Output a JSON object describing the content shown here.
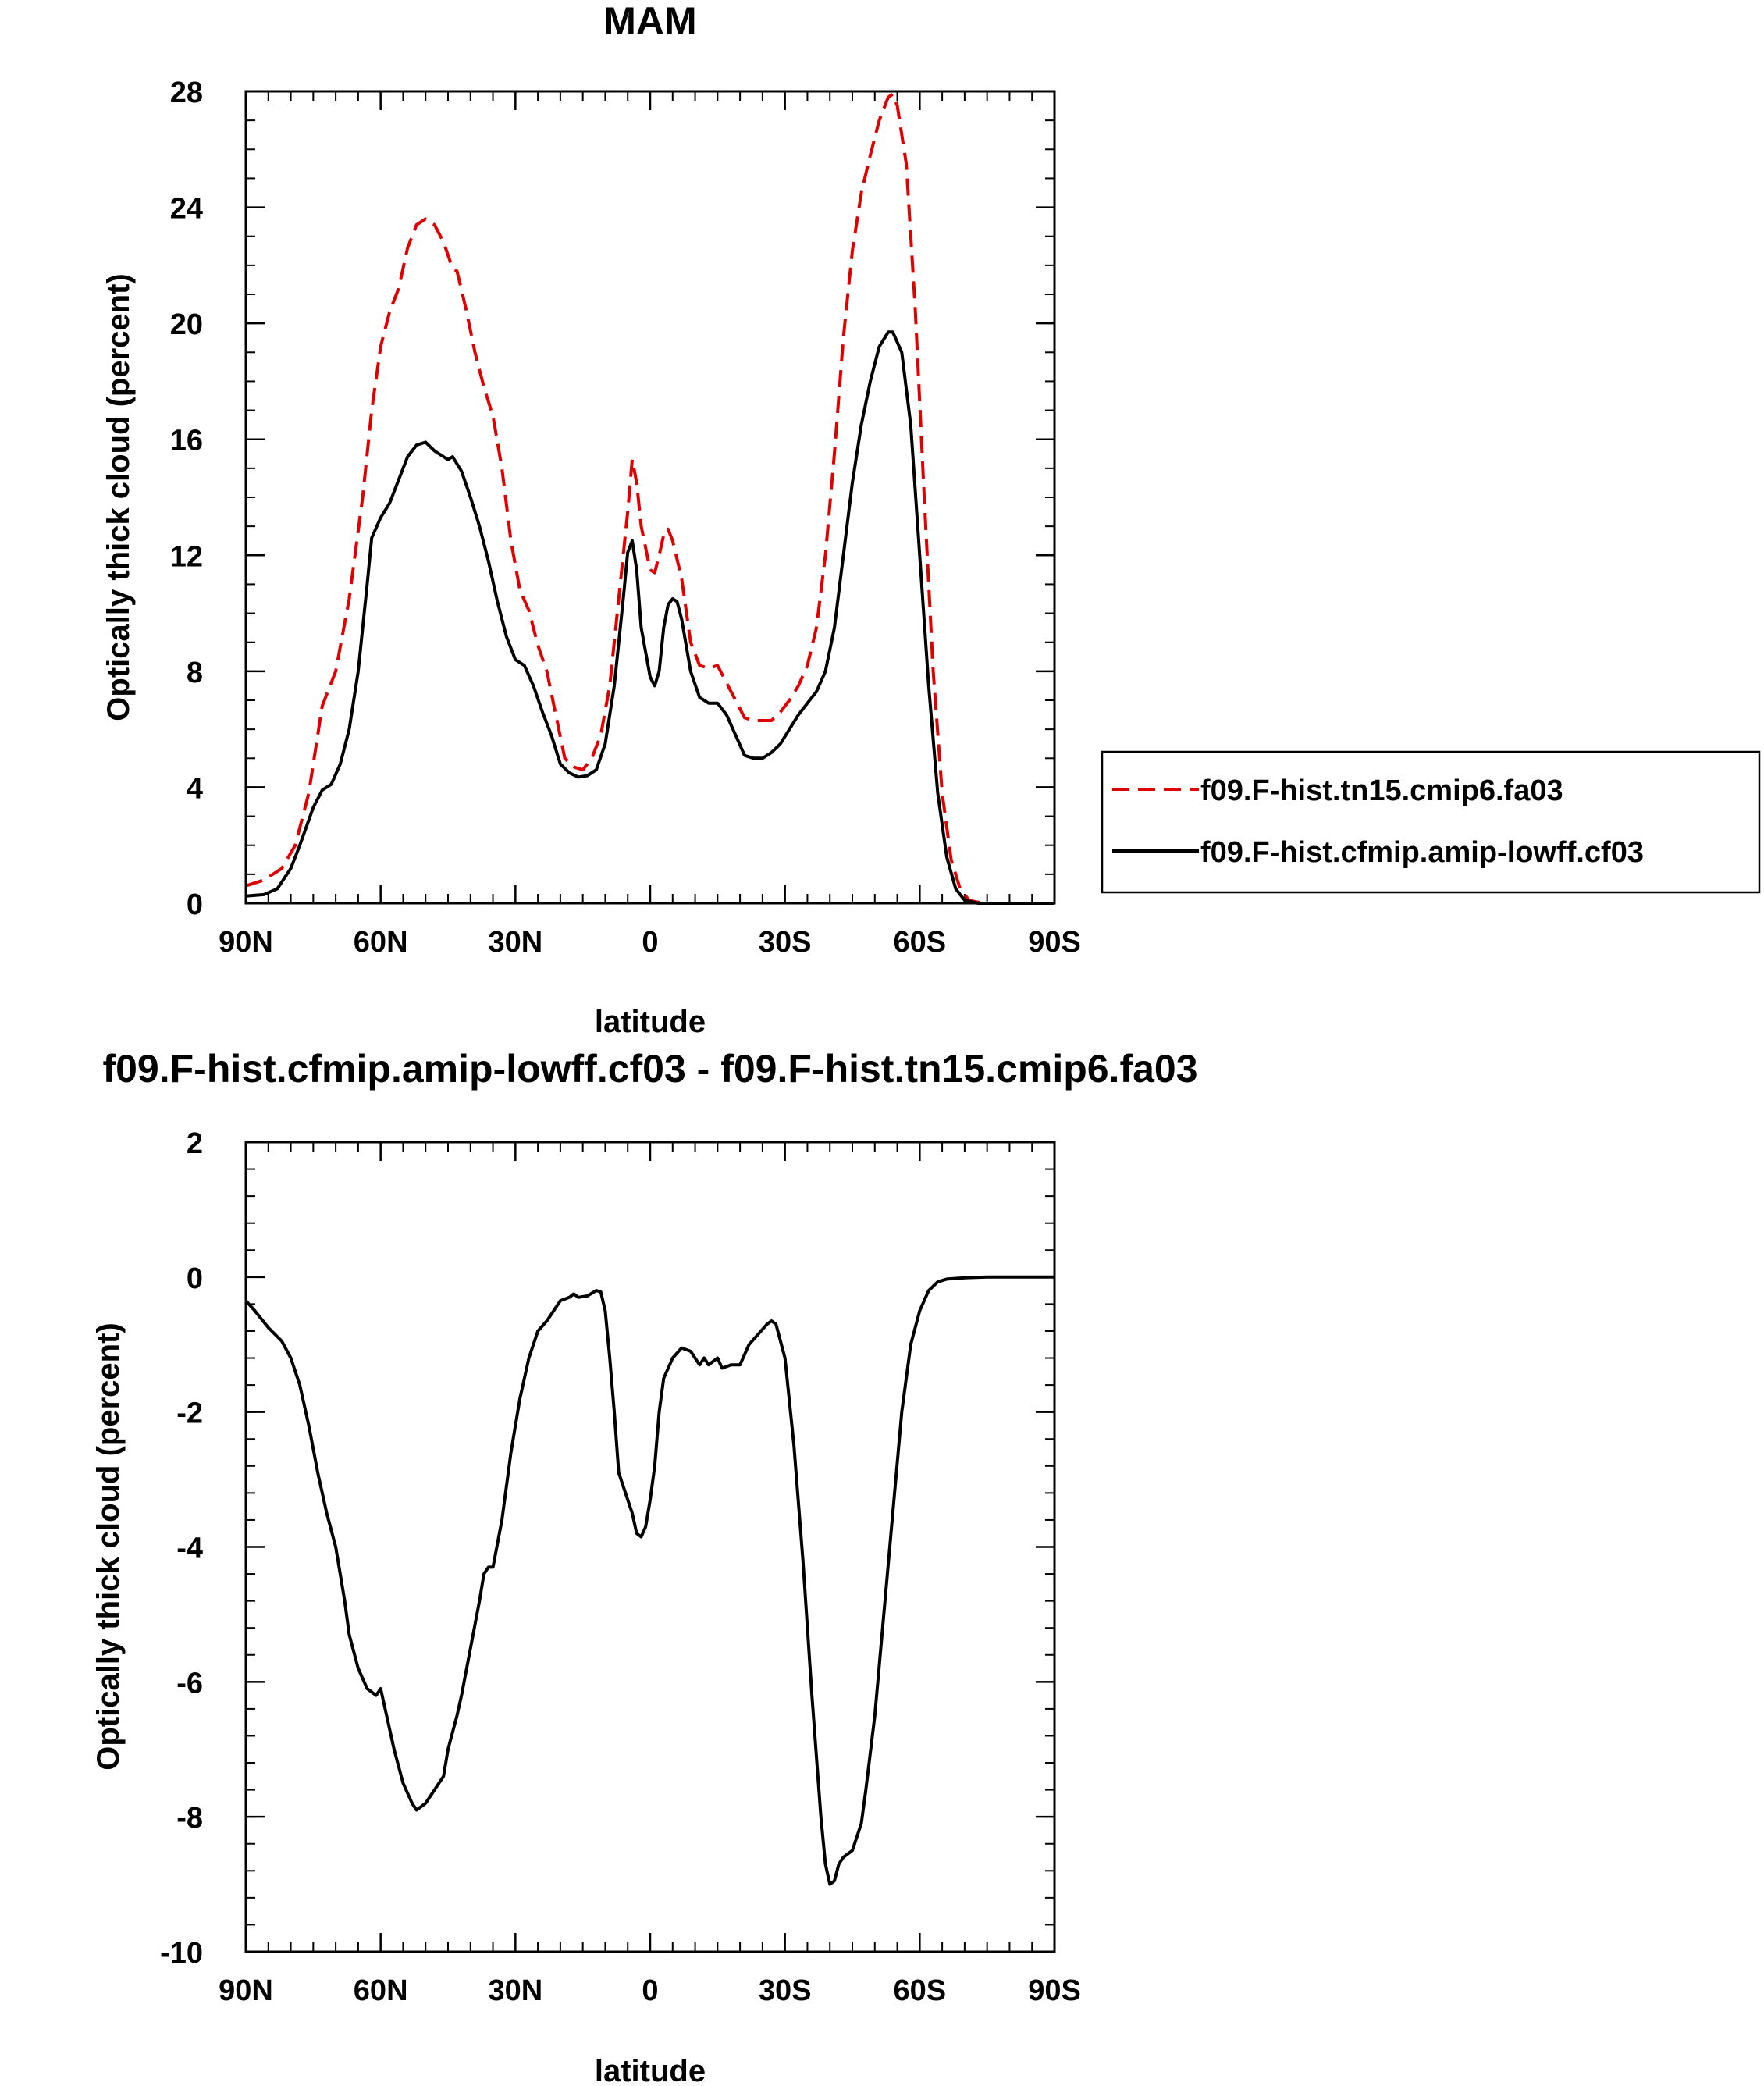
{
  "chart_data": [
    {
      "type": "line",
      "title": "MAM",
      "xlabel": "latitude",
      "ylabel": "Optically thick cloud (percent)",
      "xlim": [
        90,
        -90
      ],
      "ylim": [
        0,
        28
      ],
      "xticks": [
        90,
        60,
        30,
        0,
        -30,
        -60,
        -90
      ],
      "xtick_labels": [
        "90N",
        "60N",
        "30N",
        "0",
        "30S",
        "60S",
        "90S"
      ],
      "yticks": [
        0,
        4,
        8,
        12,
        16,
        20,
        24,
        28
      ],
      "ytick_labels": [
        "0",
        "4",
        "8",
        "12",
        "16",
        "20",
        "24",
        "28"
      ],
      "legend_position": "right",
      "series": [
        {
          "name": "f09.F-hist.tn15.cmip6.fa03",
          "color": "#e00000",
          "style": "dashed",
          "points": [
            [
              90,
              0.6
            ],
            [
              86,
              0.8
            ],
            [
              82,
              1.2
            ],
            [
              79,
              2.0
            ],
            [
              76,
              3.8
            ],
            [
              73,
              6.8
            ],
            [
              70,
              8.0
            ],
            [
              67,
              10.5
            ],
            [
              64,
              14.0
            ],
            [
              62,
              17.0
            ],
            [
              60,
              19.2
            ],
            [
              58,
              20.4
            ],
            [
              56,
              21.2
            ],
            [
              54,
              22.6
            ],
            [
              52,
              23.4
            ],
            [
              50,
              23.6
            ],
            [
              48,
              23.4
            ],
            [
              46,
              22.8
            ],
            [
              44,
              21.9
            ],
            [
              43,
              21.8
            ],
            [
              41,
              20.5
            ],
            [
              39,
              19.0
            ],
            [
              37,
              17.8
            ],
            [
              35,
              16.8
            ],
            [
              33,
              15.0
            ],
            [
              31,
              12.5
            ],
            [
              29,
              10.8
            ],
            [
              27,
              10.1
            ],
            [
              25,
              8.9
            ],
            [
              23,
              8.0
            ],
            [
              21,
              6.5
            ],
            [
              19,
              5.0
            ],
            [
              17,
              4.7
            ],
            [
              15,
              4.6
            ],
            [
              13,
              5.0
            ],
            [
              11,
              5.8
            ],
            [
              9,
              7.5
            ],
            [
              7,
              10.5
            ],
            [
              5,
              13.5
            ],
            [
              4,
              15.3
            ],
            [
              3,
              14.5
            ],
            [
              2,
              13.0
            ],
            [
              0,
              11.5
            ],
            [
              -1,
              11.4
            ],
            [
              -2,
              12.0
            ],
            [
              -3,
              12.7
            ],
            [
              -4,
              12.9
            ],
            [
              -5,
              12.5
            ],
            [
              -7,
              11.2
            ],
            [
              -9,
              9.0
            ],
            [
              -11,
              8.2
            ],
            [
              -13,
              8.1
            ],
            [
              -15,
              8.2
            ],
            [
              -17,
              7.6
            ],
            [
              -19,
              7.0
            ],
            [
              -21,
              6.4
            ],
            [
              -23,
              6.3
            ],
            [
              -25,
              6.3
            ],
            [
              -27,
              6.3
            ],
            [
              -29,
              6.6
            ],
            [
              -31,
              7.0
            ],
            [
              -33,
              7.5
            ],
            [
              -35,
              8.2
            ],
            [
              -37,
              9.5
            ],
            [
              -39,
              12.0
            ],
            [
              -41,
              15.5
            ],
            [
              -43,
              19.5
            ],
            [
              -45,
              22.5
            ],
            [
              -47,
              24.5
            ],
            [
              -49,
              25.8
            ],
            [
              -51,
              27.0
            ],
            [
              -53,
              27.8
            ],
            [
              -54,
              27.9
            ],
            [
              -55,
              27.5
            ],
            [
              -57,
              25.5
            ],
            [
              -59,
              20.5
            ],
            [
              -61,
              14.0
            ],
            [
              -63,
              8.0
            ],
            [
              -65,
              3.8
            ],
            [
              -67,
              1.5
            ],
            [
              -69,
              0.5
            ],
            [
              -71,
              0.1
            ],
            [
              -74,
              0.0
            ],
            [
              -90,
              0.0
            ]
          ]
        },
        {
          "name": "f09.F-hist.cfmip.amip-lowff.cf03",
          "color": "#000000",
          "style": "solid",
          "points": [
            [
              90,
              0.25
            ],
            [
              86,
              0.3
            ],
            [
              83,
              0.5
            ],
            [
              80,
              1.2
            ],
            [
              78,
              2.0
            ],
            [
              75,
              3.3
            ],
            [
              73,
              3.9
            ],
            [
              71,
              4.1
            ],
            [
              69,
              4.8
            ],
            [
              67,
              6.0
            ],
            [
              65,
              8.0
            ],
            [
              63,
              11.0
            ],
            [
              62,
              12.6
            ],
            [
              60,
              13.3
            ],
            [
              58,
              13.8
            ],
            [
              56,
              14.6
            ],
            [
              54,
              15.4
            ],
            [
              52,
              15.8
            ],
            [
              50,
              15.9
            ],
            [
              48,
              15.6
            ],
            [
              46,
              15.4
            ],
            [
              45,
              15.3
            ],
            [
              44,
              15.4
            ],
            [
              42,
              14.9
            ],
            [
              40,
              14.0
            ],
            [
              38,
              13.0
            ],
            [
              36,
              11.8
            ],
            [
              34,
              10.4
            ],
            [
              32,
              9.2
            ],
            [
              30,
              8.4
            ],
            [
              28,
              8.2
            ],
            [
              26,
              7.5
            ],
            [
              24,
              6.6
            ],
            [
              22,
              5.8
            ],
            [
              20,
              4.8
            ],
            [
              18,
              4.5
            ],
            [
              16,
              4.35
            ],
            [
              14,
              4.4
            ],
            [
              12,
              4.6
            ],
            [
              10,
              5.5
            ],
            [
              8,
              7.5
            ],
            [
              6,
              10.5
            ],
            [
              5,
              12.1
            ],
            [
              4,
              12.5
            ],
            [
              3,
              11.5
            ],
            [
              2,
              9.5
            ],
            [
              0,
              7.8
            ],
            [
              -1,
              7.5
            ],
            [
              -2,
              8.0
            ],
            [
              -3,
              9.5
            ],
            [
              -4,
              10.3
            ],
            [
              -5,
              10.5
            ],
            [
              -6,
              10.4
            ],
            [
              -7,
              9.8
            ],
            [
              -9,
              8.0
            ],
            [
              -11,
              7.1
            ],
            [
              -13,
              6.9
            ],
            [
              -15,
              6.9
            ],
            [
              -17,
              6.5
            ],
            [
              -19,
              5.8
            ],
            [
              -21,
              5.1
            ],
            [
              -23,
              5.0
            ],
            [
              -25,
              5.0
            ],
            [
              -27,
              5.2
            ],
            [
              -29,
              5.5
            ],
            [
              -31,
              6.0
            ],
            [
              -33,
              6.5
            ],
            [
              -35,
              6.9
            ],
            [
              -37,
              7.3
            ],
            [
              -39,
              8.0
            ],
            [
              -41,
              9.5
            ],
            [
              -43,
              12.0
            ],
            [
              -45,
              14.5
            ],
            [
              -47,
              16.5
            ],
            [
              -49,
              18.0
            ],
            [
              -51,
              19.2
            ],
            [
              -53,
              19.7
            ],
            [
              -54,
              19.7
            ],
            [
              -56,
              19.0
            ],
            [
              -58,
              16.5
            ],
            [
              -60,
              12.0
            ],
            [
              -62,
              7.5
            ],
            [
              -64,
              3.8
            ],
            [
              -66,
              1.6
            ],
            [
              -68,
              0.5
            ],
            [
              -70,
              0.1
            ],
            [
              -73,
              0.0
            ],
            [
              -90,
              0.0
            ]
          ]
        }
      ]
    },
    {
      "type": "line",
      "title": "f09.F-hist.cfmip.amip-lowff.cf03 - f09.F-hist.tn15.cmip6.fa03",
      "xlabel": "latitude",
      "ylabel": "Optically thick cloud (percent)",
      "xlim": [
        90,
        -90
      ],
      "ylim": [
        -10,
        2
      ],
      "xticks": [
        90,
        60,
        30,
        0,
        -30,
        -60,
        -90
      ],
      "xtick_labels": [
        "90N",
        "60N",
        "30N",
        "0",
        "30S",
        "60S",
        "90S"
      ],
      "yticks": [
        2,
        0,
        -2,
        -4,
        -6,
        -8,
        -10
      ],
      "ytick_labels": [
        "2",
        "0",
        "-2",
        "-4",
        "-6",
        "-8",
        "-10"
      ],
      "series": [
        {
          "color": "#000000",
          "style": "solid",
          "points": [
            [
              90,
              -0.35
            ],
            [
              88,
              -0.5
            ],
            [
              85,
              -0.75
            ],
            [
              82,
              -0.95
            ],
            [
              80,
              -1.2
            ],
            [
              78,
              -1.6
            ],
            [
              76,
              -2.2
            ],
            [
              74,
              -2.9
            ],
            [
              72,
              -3.5
            ],
            [
              70,
              -4.0
            ],
            [
              68,
              -4.8
            ],
            [
              67,
              -5.3
            ],
            [
              65,
              -5.8
            ],
            [
              63,
              -6.1
            ],
            [
              61,
              -6.2
            ],
            [
              60,
              -6.1
            ],
            [
              59,
              -6.4
            ],
            [
              57,
              -7.0
            ],
            [
              55,
              -7.5
            ],
            [
              53,
              -7.8
            ],
            [
              52,
              -7.9
            ],
            [
              50,
              -7.8
            ],
            [
              48,
              -7.6
            ],
            [
              46,
              -7.4
            ],
            [
              45,
              -7.0
            ],
            [
              43,
              -6.5
            ],
            [
              42,
              -6.2
            ],
            [
              40,
              -5.5
            ],
            [
              38,
              -4.8
            ],
            [
              37,
              -4.4
            ],
            [
              36,
              -4.3
            ],
            [
              35,
              -4.3
            ],
            [
              33,
              -3.6
            ],
            [
              31,
              -2.6
            ],
            [
              29,
              -1.8
            ],
            [
              27,
              -1.2
            ],
            [
              25,
              -0.8
            ],
            [
              23,
              -0.65
            ],
            [
              22,
              -0.55
            ],
            [
              20,
              -0.35
            ],
            [
              18,
              -0.3
            ],
            [
              17,
              -0.25
            ],
            [
              16,
              -0.3
            ],
            [
              14,
              -0.28
            ],
            [
              12,
              -0.2
            ],
            [
              11,
              -0.22
            ],
            [
              10,
              -0.5
            ],
            [
              9,
              -1.2
            ],
            [
              8,
              -2.0
            ],
            [
              7,
              -2.9
            ],
            [
              5,
              -3.3
            ],
            [
              4,
              -3.5
            ],
            [
              3,
              -3.8
            ],
            [
              2,
              -3.85
            ],
            [
              1,
              -3.7
            ],
            [
              0,
              -3.3
            ],
            [
              -1,
              -2.8
            ],
            [
              -2,
              -2.0
            ],
            [
              -3,
              -1.5
            ],
            [
              -5,
              -1.2
            ],
            [
              -7,
              -1.05
            ],
            [
              -9,
              -1.1
            ],
            [
              -11,
              -1.3
            ],
            [
              -12,
              -1.2
            ],
            [
              -13,
              -1.3
            ],
            [
              -15,
              -1.2
            ],
            [
              -16,
              -1.35
            ],
            [
              -18,
              -1.3
            ],
            [
              -20,
              -1.3
            ],
            [
              -22,
              -1.0
            ],
            [
              -24,
              -0.85
            ],
            [
              -26,
              -0.7
            ],
            [
              -27,
              -0.65
            ],
            [
              -28,
              -0.7
            ],
            [
              -30,
              -1.2
            ],
            [
              -32,
              -2.5
            ],
            [
              -34,
              -4.2
            ],
            [
              -36,
              -6.2
            ],
            [
              -38,
              -8.0
            ],
            [
              -39,
              -8.7
            ],
            [
              -40,
              -9.0
            ],
            [
              -41,
              -8.95
            ],
            [
              -42,
              -8.7
            ],
            [
              -43,
              -8.6
            ],
            [
              -45,
              -8.5
            ],
            [
              -47,
              -8.1
            ],
            [
              -48,
              -7.6
            ],
            [
              -50,
              -6.5
            ],
            [
              -52,
              -5.0
            ],
            [
              -54,
              -3.5
            ],
            [
              -56,
              -2.0
            ],
            [
              -58,
              -1.0
            ],
            [
              -60,
              -0.5
            ],
            [
              -62,
              -0.2
            ],
            [
              -64,
              -0.07
            ],
            [
              -66,
              -0.03
            ],
            [
              -70,
              -0.01
            ],
            [
              -75,
              0.0
            ],
            [
              -90,
              0.0
            ]
          ]
        }
      ]
    }
  ]
}
